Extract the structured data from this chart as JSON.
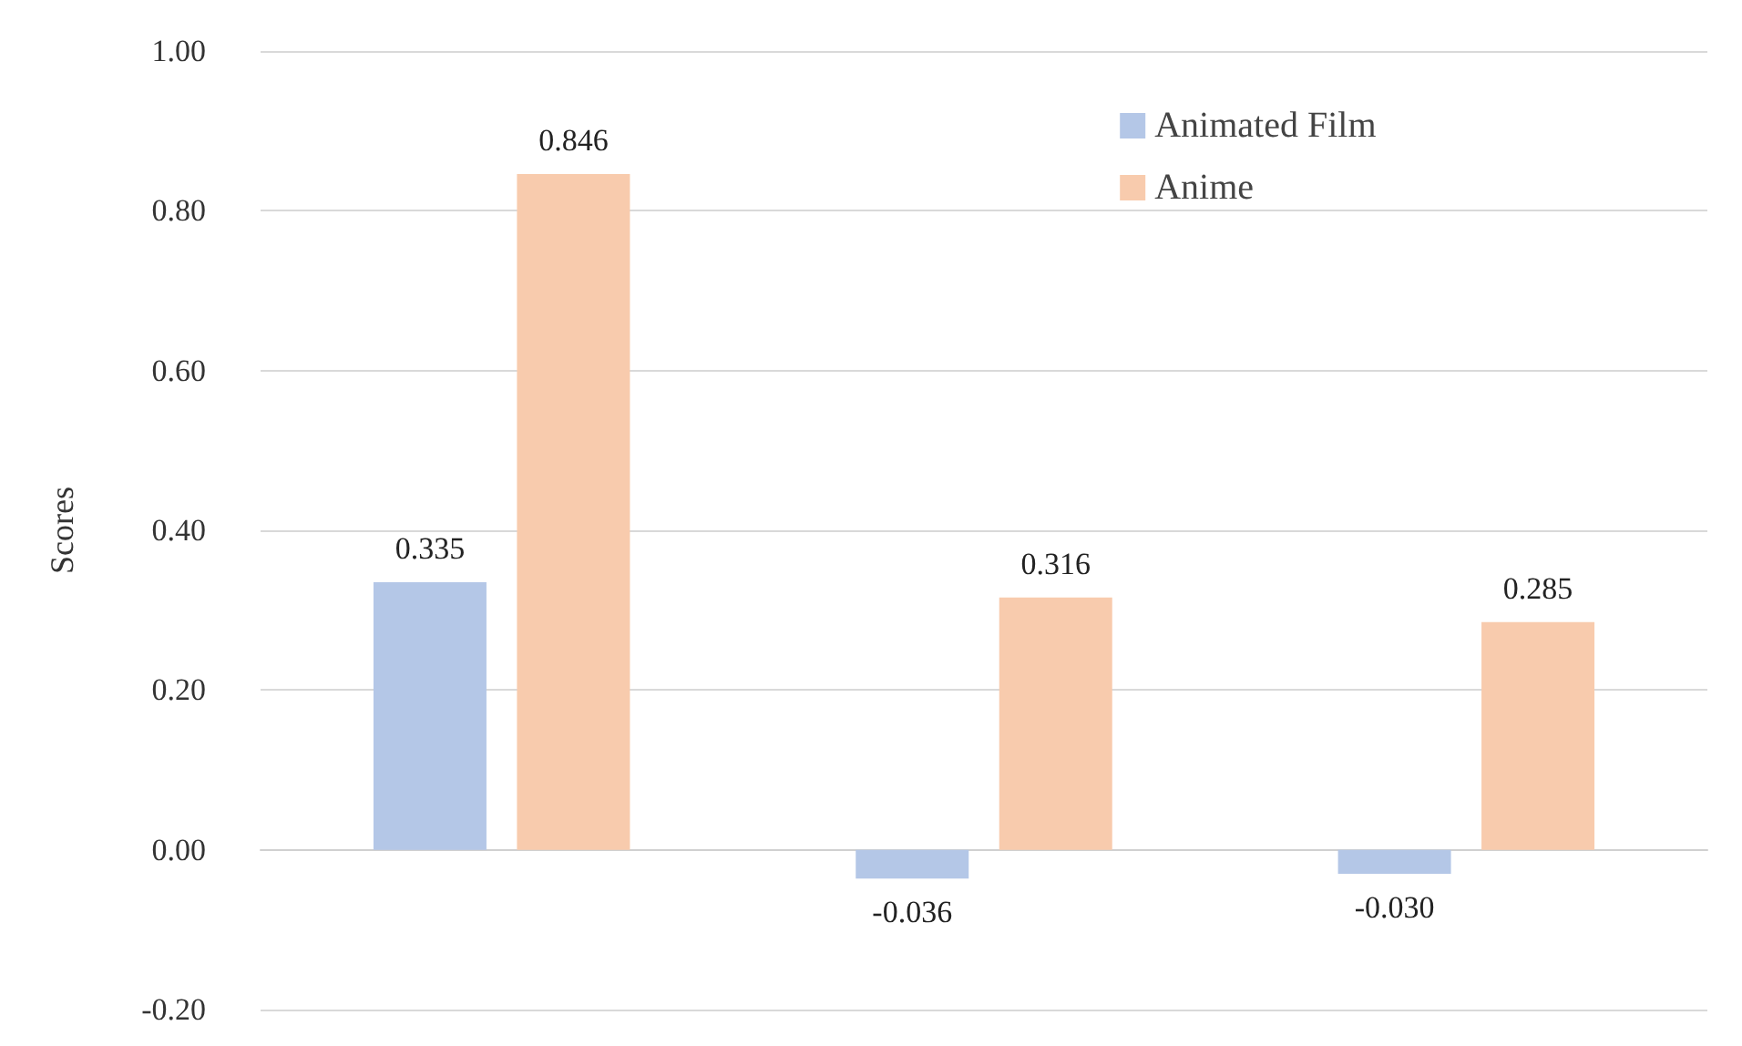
{
  "chart_data": {
    "type": "bar",
    "ylabel": "Scores",
    "categories": [
      null,
      null,
      null
    ],
    "series": [
      {
        "name": "Animated Film",
        "color": "#b4c7e7",
        "values": [
          0.335,
          -0.036,
          -0.03
        ],
        "value_labels": [
          "0.335",
          "-0.036",
          "-0.030"
        ]
      },
      {
        "name": "Anime",
        "color": "#f8cbad",
        "values": [
          0.846,
          0.316,
          0.285
        ],
        "value_labels": [
          "0.846",
          "0.316",
          "0.285"
        ]
      }
    ],
    "ylim": [
      -0.2,
      1
    ],
    "yticks": [
      {
        "value": -0.2,
        "label": "-0.20"
      },
      {
        "value": 0,
        "label": "0.00"
      },
      {
        "value": 0.2,
        "label": "0.20"
      },
      {
        "value": 0.4,
        "label": "0.40"
      },
      {
        "value": 0.6,
        "label": "0.60"
      },
      {
        "value": 0.8,
        "label": "0.80"
      },
      {
        "value": 1,
        "label": "1.00"
      }
    ],
    "grid": "y",
    "legend": "top right"
  }
}
